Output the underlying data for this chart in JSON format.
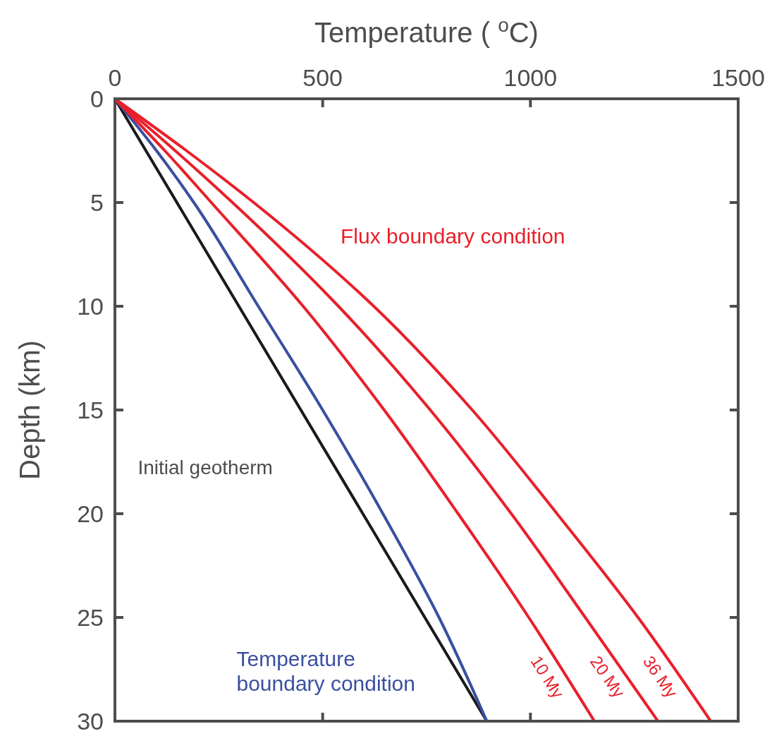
{
  "chart_data": {
    "type": "line",
    "xlabel": "Temperature ( $^{o}$C)",
    "ylabel": "Depth (km)",
    "xlim": [
      0,
      1500
    ],
    "xticks": [
      0,
      500,
      1000,
      1500
    ],
    "ylim": [
      30,
      0
    ],
    "yticks": [
      0,
      5,
      10,
      15,
      20,
      25,
      30
    ],
    "grid": false,
    "marker": "none",
    "line_style": "solid",
    "series": [
      {
        "name": "Initial geotherm",
        "color": "#1a1a1a",
        "x": [
          0,
          895
        ],
        "values": [
          0,
          30
        ]
      },
      {
        "name": "Temperature boundary condition",
        "color": "#3a4fa0",
        "x": [
          0,
          100,
          190,
          345,
          500,
          645,
          780,
          895
        ],
        "values": [
          0,
          2.5,
          5,
          10,
          15,
          20,
          25,
          30
        ]
      },
      {
        "name": "10 My",
        "color": "#e8202a",
        "x": [
          0,
          120,
          232,
          453,
          648,
          826,
          996,
          1154
        ],
        "values": [
          0,
          2.5,
          5,
          10,
          15,
          20,
          25,
          30
        ]
      },
      {
        "name": "20 My",
        "color": "#e8202a",
        "x": [
          0,
          145,
          283,
          538,
          759,
          954,
          1132,
          1307
        ],
        "values": [
          0,
          2.5,
          5,
          10,
          15,
          20,
          25,
          30
        ]
      },
      {
        "name": "36 My",
        "color": "#e8202a",
        "x": [
          0,
          172,
          334,
          623,
          860,
          1064,
          1259,
          1434
        ],
        "values": [
          0,
          2.5,
          5,
          10,
          15,
          20,
          25,
          30
        ]
      }
    ],
    "annotations": [
      "Flux boundary condition"
    ]
  }
}
